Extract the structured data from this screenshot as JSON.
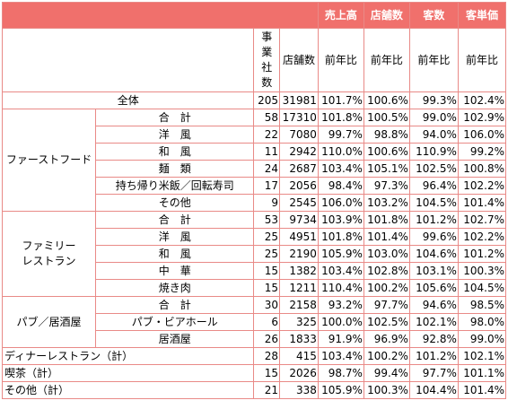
{
  "header": {
    "sales": "売上高",
    "stores": "店舗数",
    "customers": "客数",
    "unit_price": "客単価",
    "col_companies": "事業社数",
    "col_store_count": "店舗数",
    "yoy": "前年比"
  },
  "rows": {
    "total": {
      "label": "全体",
      "companies": "205",
      "stores": "31981",
      "sales": "101.7%",
      "store_yoy": "100.6%",
      "customers": "99.3%",
      "unit_price": "102.4%"
    },
    "ff": {
      "group": "ファーストフード",
      "items": [
        {
          "label": "合　計",
          "companies": "58",
          "stores": "17310",
          "sales": "101.8%",
          "store_yoy": "100.5%",
          "customers": "99.0%",
          "unit_price": "102.9%"
        },
        {
          "label": "洋　風",
          "companies": "22",
          "stores": "7080",
          "sales": "99.7%",
          "store_yoy": "98.8%",
          "customers": "94.0%",
          "unit_price": "106.0%"
        },
        {
          "label": "和　風",
          "companies": "11",
          "stores": "2942",
          "sales": "110.0%",
          "store_yoy": "100.6%",
          "customers": "110.9%",
          "unit_price": "99.2%"
        },
        {
          "label": "麺　類",
          "companies": "24",
          "stores": "2687",
          "sales": "103.4%",
          "store_yoy": "105.1%",
          "customers": "102.5%",
          "unit_price": "100.8%"
        },
        {
          "label": "持ち帰り米飯／回転寿司",
          "companies": "17",
          "stores": "2056",
          "sales": "98.4%",
          "store_yoy": "97.3%",
          "customers": "96.4%",
          "unit_price": "102.2%"
        },
        {
          "label": "その他",
          "companies": "9",
          "stores": "2545",
          "sales": "106.0%",
          "store_yoy": "103.2%",
          "customers": "104.5%",
          "unit_price": "101.4%"
        }
      ]
    },
    "fr": {
      "group_line1": "ファミリー",
      "group_line2": "レストラン",
      "items": [
        {
          "label": "合　計",
          "companies": "53",
          "stores": "9734",
          "sales": "103.9%",
          "store_yoy": "101.8%",
          "customers": "101.2%",
          "unit_price": "102.7%"
        },
        {
          "label": "洋　風",
          "companies": "25",
          "stores": "4951",
          "sales": "101.8%",
          "store_yoy": "101.4%",
          "customers": "99.6%",
          "unit_price": "102.2%"
        },
        {
          "label": "和　風",
          "companies": "25",
          "stores": "2190",
          "sales": "105.9%",
          "store_yoy": "103.0%",
          "customers": "104.6%",
          "unit_price": "101.2%"
        },
        {
          "label": "中　華",
          "companies": "15",
          "stores": "1382",
          "sales": "103.4%",
          "store_yoy": "102.8%",
          "customers": "103.1%",
          "unit_price": "100.3%"
        },
        {
          "label": "焼き肉",
          "companies": "15",
          "stores": "1211",
          "sales": "110.4%",
          "store_yoy": "100.2%",
          "customers": "105.6%",
          "unit_price": "104.5%"
        }
      ]
    },
    "pub": {
      "group": "パブ／居酒屋",
      "items": [
        {
          "label": "合　計",
          "companies": "30",
          "stores": "2158",
          "sales": "93.2%",
          "store_yoy": "97.7%",
          "customers": "94.6%",
          "unit_price": "98.5%"
        },
        {
          "label": "パブ・ビアホール",
          "companies": "6",
          "stores": "325",
          "sales": "100.0%",
          "store_yoy": "102.5%",
          "customers": "102.1%",
          "unit_price": "98.0%"
        },
        {
          "label": "居酒屋",
          "companies": "26",
          "stores": "1833",
          "sales": "91.9%",
          "store_yoy": "96.9%",
          "customers": "92.8%",
          "unit_price": "99.0%"
        }
      ]
    },
    "dinner": {
      "label": "ディナーレストラン（計）",
      "companies": "28",
      "stores": "415",
      "sales": "103.4%",
      "store_yoy": "100.2%",
      "customers": "101.2%",
      "unit_price": "102.1%"
    },
    "cafe": {
      "label": "喫茶（計）",
      "companies": "15",
      "stores": "2026",
      "sales": "98.7%",
      "store_yoy": "99.4%",
      "customers": "97.7%",
      "unit_price": "101.1%"
    },
    "other": {
      "label": "その他（計）",
      "companies": "21",
      "stores": "338",
      "sales": "105.9%",
      "store_yoy": "100.3%",
      "customers": "104.4%",
      "unit_price": "101.4%"
    }
  }
}
